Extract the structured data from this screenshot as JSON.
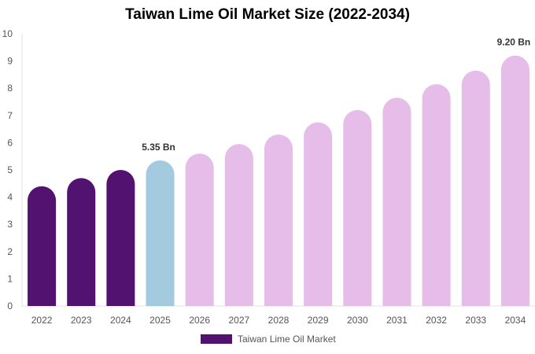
{
  "chart_data": {
    "type": "bar",
    "title": "Taiwan Lime Oil Market Size (2022-2034)",
    "categories": [
      "2022",
      "2023",
      "2024",
      "2025",
      "2026",
      "2027",
      "2028",
      "2029",
      "2030",
      "2031",
      "2032",
      "2033",
      "2034"
    ],
    "series": [
      {
        "name": "Taiwan Lime Oil Market",
        "values": [
          4.4,
          4.7,
          5.0,
          5.35,
          5.6,
          5.95,
          6.3,
          6.75,
          7.2,
          7.65,
          8.15,
          8.65,
          9.2
        ]
      }
    ],
    "data_labels": [
      {
        "category": "2025",
        "text": "5.35 Bn"
      },
      {
        "category": "2034",
        "text": "9.20 Bn"
      }
    ],
    "yticks": [
      "0",
      "1",
      "2",
      "3",
      "4",
      "5",
      "6",
      "7",
      "8",
      "9",
      "10"
    ],
    "ylim": [
      0,
      10
    ],
    "xlabel": "",
    "ylabel": "",
    "grid": false,
    "legend_position": "bottom",
    "colors": {
      "historical": "#521270",
      "current": "#a3cadf",
      "forecast": "#e6bde9"
    }
  }
}
